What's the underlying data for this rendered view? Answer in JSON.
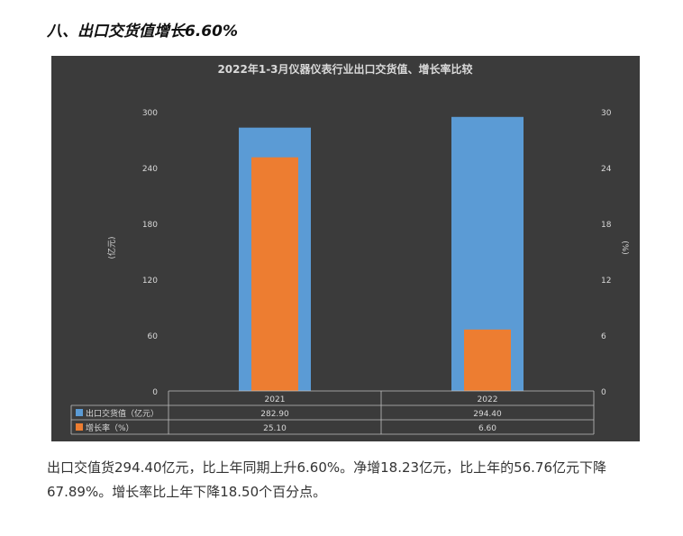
{
  "heading": "八、出口交货值增长6.60%",
  "paragraph": "出口交值货294.40亿元，比上年同期上升6.60%。净增18.23亿元，比上年的56.76亿元下降67.89%。增长率比上年下降18.50个百分点。",
  "colors": {
    "background": "#3b3b3b",
    "export_value": "#5b9bd5",
    "growth_rate": "#ed7d31",
    "text": "#d9d9d9",
    "grid": "#555555"
  },
  "chart_data": {
    "type": "bar",
    "title": "2022年1-3月仪器仪表行业出口交货值、增长率比较",
    "categories": [
      "2021",
      "2022"
    ],
    "series": [
      {
        "name": "出口交货值（亿元）",
        "axis": "left",
        "values": [
          282.9,
          294.4
        ],
        "labels": [
          "282.90",
          "294.40"
        ]
      },
      {
        "name": "增长率（%）",
        "axis": "right",
        "values": [
          25.1,
          6.6
        ],
        "labels": [
          "25.10",
          "6.60"
        ]
      }
    ],
    "ylabel": "(亿元)",
    "y2label": "(%)",
    "ylim": [
      0,
      300
    ],
    "y2lim": [
      0,
      30
    ],
    "yticks": [
      "0",
      "60",
      "120",
      "180",
      "240",
      "300"
    ],
    "y2ticks": [
      "0",
      "6",
      "12",
      "18",
      "24",
      "30"
    ],
    "grid": false,
    "legend": "data-table"
  }
}
